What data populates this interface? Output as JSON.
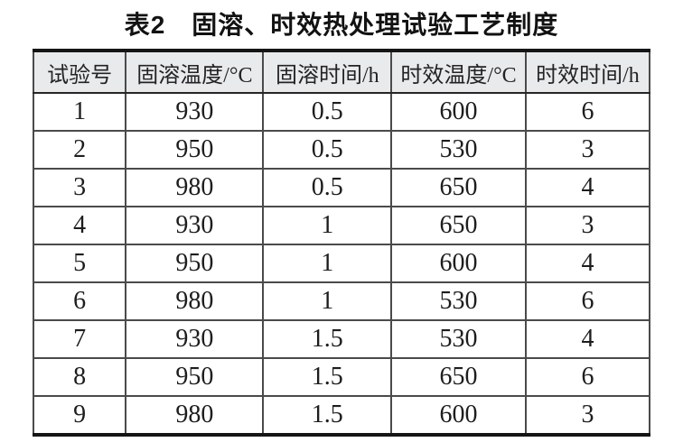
{
  "title": "表2　固溶、时效热处理试验工艺制度",
  "table": {
    "headers": [
      "试验号",
      "固溶温度/°C",
      "固溶时间/h",
      "时效温度/°C",
      "时效时间/h"
    ],
    "rows": [
      [
        "1",
        "930",
        "0.5",
        "600",
        "6"
      ],
      [
        "2",
        "950",
        "0.5",
        "530",
        "3"
      ],
      [
        "3",
        "980",
        "0.5",
        "650",
        "4"
      ],
      [
        "4",
        "930",
        "1",
        "650",
        "3"
      ],
      [
        "5",
        "950",
        "1",
        "600",
        "4"
      ],
      [
        "6",
        "980",
        "1",
        "530",
        "6"
      ],
      [
        "7",
        "930",
        "1.5",
        "530",
        "4"
      ],
      [
        "8",
        "950",
        "1.5",
        "650",
        "6"
      ],
      [
        "9",
        "980",
        "1.5",
        "600",
        "3"
      ]
    ]
  },
  "colors": {
    "header_background": "#e8eaec",
    "heavy_rule": "#151515",
    "grid_line": "#4a4a4a",
    "text": "#1d1d1f",
    "page_background": "#ffffff"
  },
  "chart_data": {
    "type": "table",
    "title": "表2　固溶、时效热处理试验工艺制度",
    "columns": [
      "试验号",
      "固溶温度/°C",
      "固溶时间/h",
      "时效温度/°C",
      "时效时间/h"
    ],
    "rows": [
      [
        1,
        930,
        0.5,
        600,
        6
      ],
      [
        2,
        950,
        0.5,
        530,
        3
      ],
      [
        3,
        980,
        0.5,
        650,
        4
      ],
      [
        4,
        930,
        1,
        650,
        3
      ],
      [
        5,
        950,
        1,
        600,
        4
      ],
      [
        6,
        980,
        1,
        530,
        6
      ],
      [
        7,
        930,
        1.5,
        530,
        4
      ],
      [
        8,
        950,
        1.5,
        650,
        6
      ],
      [
        9,
        980,
        1.5,
        600,
        3
      ]
    ]
  }
}
